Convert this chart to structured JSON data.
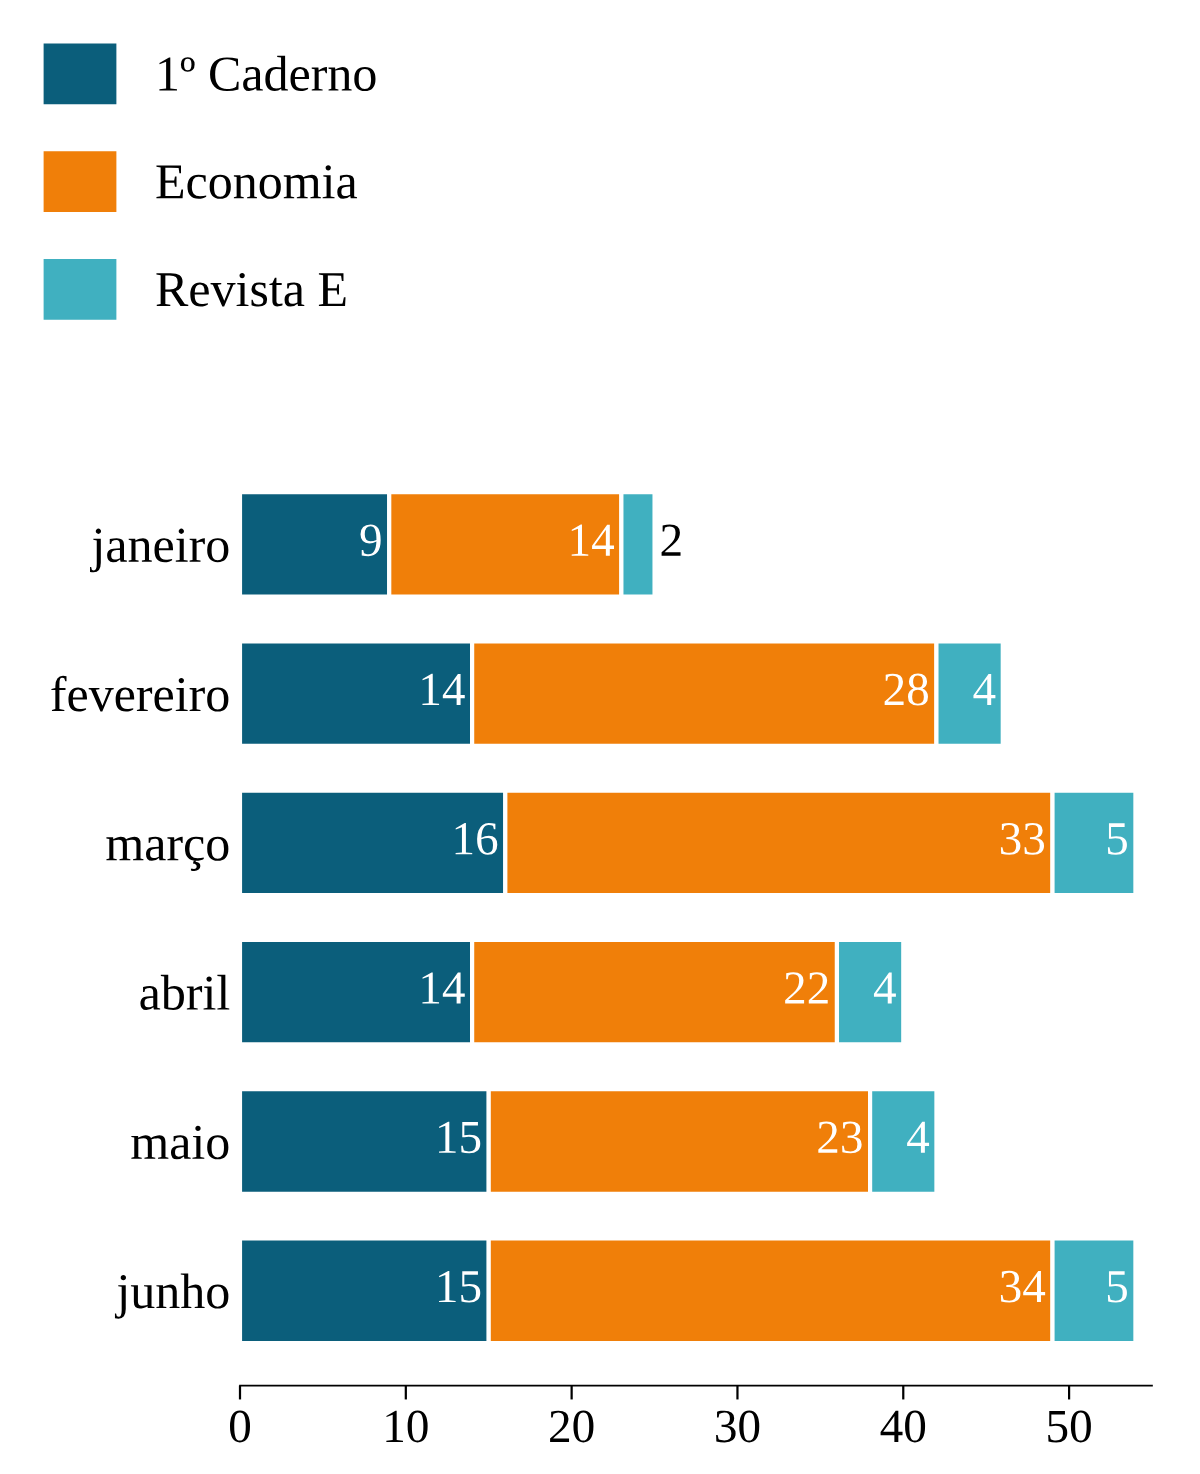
{
  "chart_data": {
    "type": "bar",
    "orientation": "horizontal",
    "stacked": true,
    "data_labels": true,
    "legend": "top left",
    "grid": false,
    "categories": [
      "janeiro",
      "fevereiro",
      "março",
      "abril",
      "maio",
      "junho"
    ],
    "series": [
      {
        "name": "1º Caderno",
        "color": "#0b5e7b",
        "values": [
          9,
          14,
          16,
          14,
          15,
          15
        ]
      },
      {
        "name": "Economia",
        "color": "#f07f09",
        "values": [
          14,
          28,
          33,
          22,
          23,
          34
        ]
      },
      {
        "name": "Revista E",
        "color": "#40b0c0",
        "values": [
          2,
          4,
          5,
          4,
          4,
          5
        ]
      }
    ],
    "xlim": [
      0,
      55
    ],
    "xticks": [
      0,
      10,
      20,
      30,
      40,
      50
    ]
  }
}
